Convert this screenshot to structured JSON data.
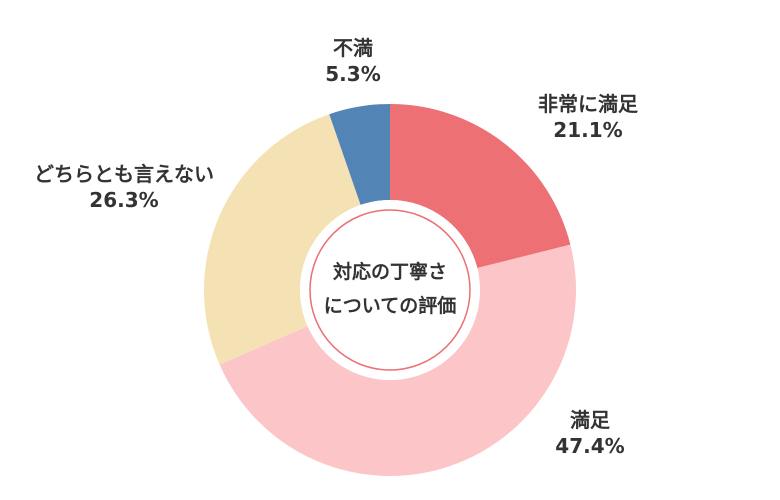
{
  "chart_data": {
    "type": "pie",
    "variant": "donut",
    "title": "",
    "center_label": [
      "対応の丁寧さ",
      "についての評価"
    ],
    "categories": [
      "非常に満足",
      "満足",
      "どちらとも言えない",
      "不満"
    ],
    "values": [
      21.1,
      47.4,
      26.3,
      5.3
    ],
    "value_labels": [
      "21.1%",
      "47.4%",
      "26.3%",
      "5.3%"
    ],
    "unit": "%",
    "colors": [
      "#ec7074",
      "#fcc6c9",
      "#f4e2b4",
      "#5285b5"
    ],
    "start_angle_deg": 0,
    "direction": "clockwise",
    "legend": "none"
  }
}
